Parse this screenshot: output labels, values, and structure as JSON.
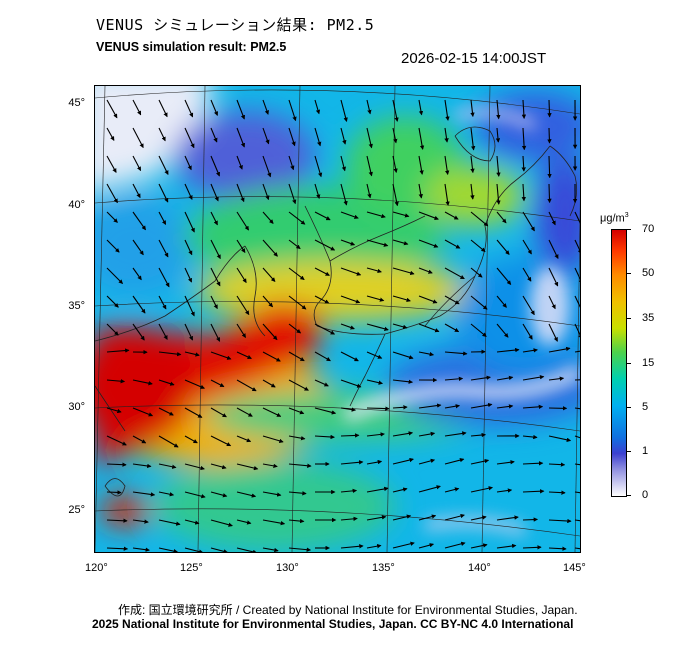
{
  "header": {
    "title_jp": "VENUS シミュレーション結果: PM2.5",
    "title_en": "VENUS simulation result: PM2.5",
    "timestamp": "2026-02-15 14:00JST"
  },
  "map": {
    "type": "heatmap",
    "variable": "PM2.5",
    "lon_ticks": [
      "120°",
      "125°",
      "130°",
      "135°",
      "140°",
      "145°"
    ],
    "lat_ticks": [
      "45°",
      "40°",
      "35°",
      "30°",
      "25°"
    ],
    "lon_range": [
      120,
      145
    ],
    "lat_range": [
      23,
      46
    ]
  },
  "colorbar": {
    "unit": "μg/m3",
    "unit_base": "μg/m",
    "unit_sup": "3",
    "ticks": [
      "70",
      "50",
      "35",
      "15",
      "5",
      "1",
      "0"
    ],
    "colors": [
      "#d40000",
      "#ff8c00",
      "#f0c000",
      "#4cd24c",
      "#00b0f0",
      "#1070e0",
      "#ffffff"
    ]
  },
  "footer": {
    "credit_line1": "作成: 国立環境研究所 / Created by National Institute for Environmental Studies, Japan.",
    "credit_line2": "2025 National Institute for Environmental Studies, Japan. CC BY-NC 4.0 International"
  }
}
